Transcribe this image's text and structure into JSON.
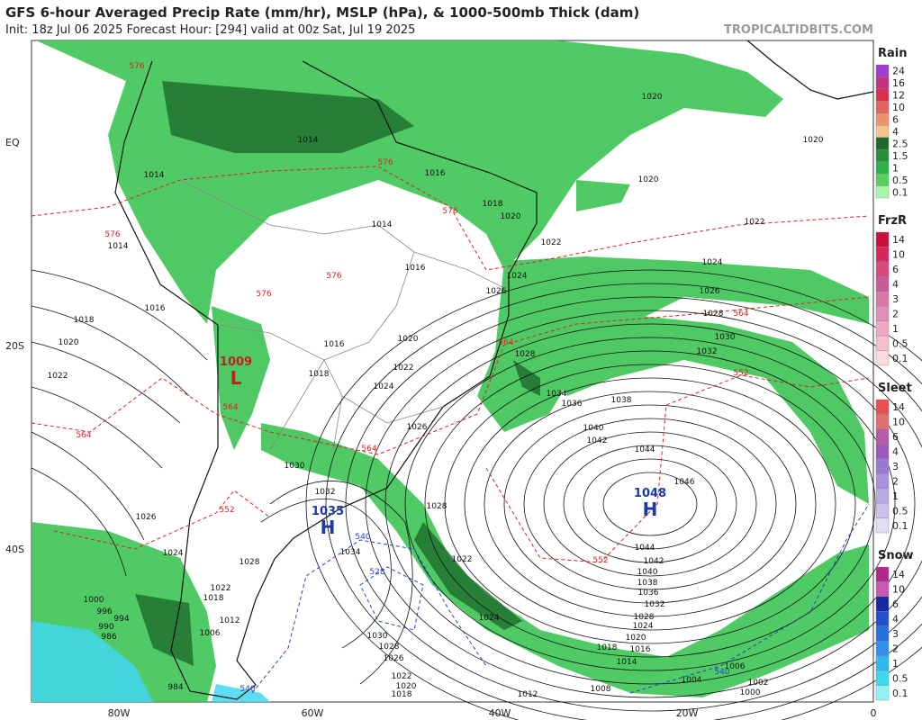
{
  "header": {
    "title": "GFS 6-hour Averaged Precip Rate (mm/hr), MSLP (hPa), & 1000-500mb Thick (dam)",
    "subtitle": "Init: 18z Jul 06 2025   Forecast Hour: [294]   valid at 00z Sat, Jul 19 2025",
    "watermark": "TROPICALTIDBITS.COM"
  },
  "map": {
    "lon_labels": [
      "80W",
      "60W",
      "40W",
      "20W",
      "0"
    ],
    "lat_labels": [
      "EQ",
      "20S",
      "40S"
    ],
    "centers": [
      {
        "value": 1048,
        "letter": "H"
      },
      {
        "value": 1035,
        "letter": "H"
      },
      {
        "value": 1009,
        "letter": "L"
      }
    ],
    "isobar_labels": [
      1020,
      1020,
      1020,
      1022,
      1024,
      1026,
      1028,
      1030,
      1032,
      1036,
      1038,
      1040,
      1042,
      1044,
      1046,
      1044,
      1042,
      1040,
      1038,
      1036,
      1032,
      1028,
      1024,
      1020,
      1018,
      1016,
      1014,
      1008,
      1006,
      1004,
      1002,
      1000,
      1016,
      1018,
      1020,
      1022,
      1026,
      1030,
      1032,
      1034,
      1030,
      1028,
      1026,
      1022,
      1020,
      1018,
      1014,
      1016,
      1018,
      1020,
      1022,
      1024,
      1026,
      1028,
      1034,
      1024,
      1022,
      1020,
      1016,
      1018,
      1016,
      1014,
      1014,
      1014,
      1026,
      1028,
      1022,
      1024,
      1012,
      1024,
      1028,
      1022,
      1018,
      1012,
      1006,
      1000,
      996,
      994,
      990,
      986,
      984
    ],
    "thickness_labels": [
      576,
      576,
      576,
      576,
      576,
      576,
      564,
      564,
      564,
      564,
      564,
      552,
      552,
      552
    ],
    "cold_thickness_labels": [
      540,
      540,
      540,
      528
    ],
    "legend": [
      {
        "title": "Rain",
        "levels": [
          {
            "label": "24",
            "color": "#a23bd1"
          },
          {
            "label": "16",
            "color": "#c2307f"
          },
          {
            "label": "12",
            "color": "#d8304c"
          },
          {
            "label": "10",
            "color": "#e86060"
          },
          {
            "label": "6",
            "color": "#f09070"
          },
          {
            "label": "4",
            "color": "#f5c48c"
          },
          {
            "label": "2.5",
            "color": "#1d6a2c"
          },
          {
            "label": "1.5",
            "color": "#229036"
          },
          {
            "label": "1",
            "color": "#2eb14a"
          },
          {
            "label": "0.5",
            "color": "#52d35e"
          },
          {
            "label": "0.1",
            "color": "#a8f4a8"
          }
        ]
      },
      {
        "title": "FrzR",
        "levels": [
          {
            "label": "14",
            "color": "#c8103a"
          },
          {
            "label": "10",
            "color": "#d8285a"
          },
          {
            "label": "6",
            "color": "#d84a7a"
          },
          {
            "label": "4",
            "color": "#c85a98"
          },
          {
            "label": "3",
            "color": "#d87aa8"
          },
          {
            "label": "2",
            "color": "#e090b8"
          },
          {
            "label": "1",
            "color": "#eca8c0"
          },
          {
            "label": "0.5",
            "color": "#f4c0cc"
          },
          {
            "label": "0.1",
            "color": "#fadce0"
          }
        ]
      },
      {
        "title": "Sleet",
        "levels": [
          {
            "label": "14",
            "color": "#e85050"
          },
          {
            "label": "10",
            "color": "#e07070"
          },
          {
            "label": "6",
            "color": "#b85aa8"
          },
          {
            "label": "4",
            "color": "#9a5ac0"
          },
          {
            "label": "3",
            "color": "#9a7ad0"
          },
          {
            "label": "2",
            "color": "#a890dc"
          },
          {
            "label": "1",
            "color": "#b8a8e4"
          },
          {
            "label": "0.5",
            "color": "#ccc0ec"
          },
          {
            "label": "0.1",
            "color": "#e2dcf4"
          }
        ]
      },
      {
        "title": "Snow",
        "levels": [
          {
            "label": "14",
            "color": "#b02890"
          },
          {
            "label": "10",
            "color": "#c858b0"
          },
          {
            "label": "6",
            "color": "#1828a0"
          },
          {
            "label": "4",
            "color": "#2050d0"
          },
          {
            "label": "3",
            "color": "#2870e0"
          },
          {
            "label": "2",
            "color": "#3090f0"
          },
          {
            "label": "1",
            "color": "#30b8f0"
          },
          {
            "label": "0.5",
            "color": "#40d8f0"
          },
          {
            "label": "0.1",
            "color": "#90f4f4"
          }
        ]
      }
    ]
  }
}
